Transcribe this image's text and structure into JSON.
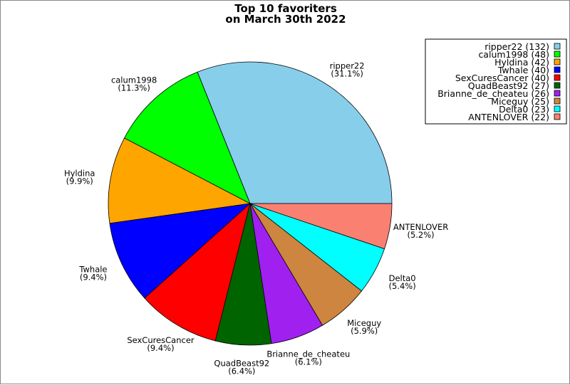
{
  "chart_data": {
    "type": "pie",
    "title": [
      "Top 10 favoriters",
      "on March 30th 2022"
    ],
    "start_angle_deg": 0,
    "direction": "counterclockwise",
    "legend_placement": "top-right",
    "slices": [
      {
        "name": "ripper22",
        "value": 132,
        "percent": "31.1%",
        "color": "#87CEEB"
      },
      {
        "name": "calum1998",
        "value": 48,
        "percent": "11.3%",
        "color": "#00FF00"
      },
      {
        "name": "Hyldina",
        "value": 42,
        "percent": "9.9%",
        "color": "#FFA500"
      },
      {
        "name": "Twhale",
        "value": 40,
        "percent": "9.4%",
        "color": "#0000FF"
      },
      {
        "name": "SexCuresCancer",
        "value": 40,
        "percent": "9.4%",
        "color": "#FF0000"
      },
      {
        "name": "QuadBeast92",
        "value": 27,
        "percent": "6.4%",
        "color": "#006400"
      },
      {
        "name": "Brianne_de_cheateu",
        "value": 26,
        "percent": "6.1%",
        "color": "#A020F0"
      },
      {
        "name": "Miceguy",
        "value": 25,
        "percent": "5.9%",
        "color": "#CD853F"
      },
      {
        "name": "Delta0",
        "value": 23,
        "percent": "5.4%",
        "color": "#00FFFF"
      },
      {
        "name": "ANTENLOVER",
        "value": 22,
        "percent": "5.2%",
        "color": "#FA8072"
      }
    ]
  }
}
